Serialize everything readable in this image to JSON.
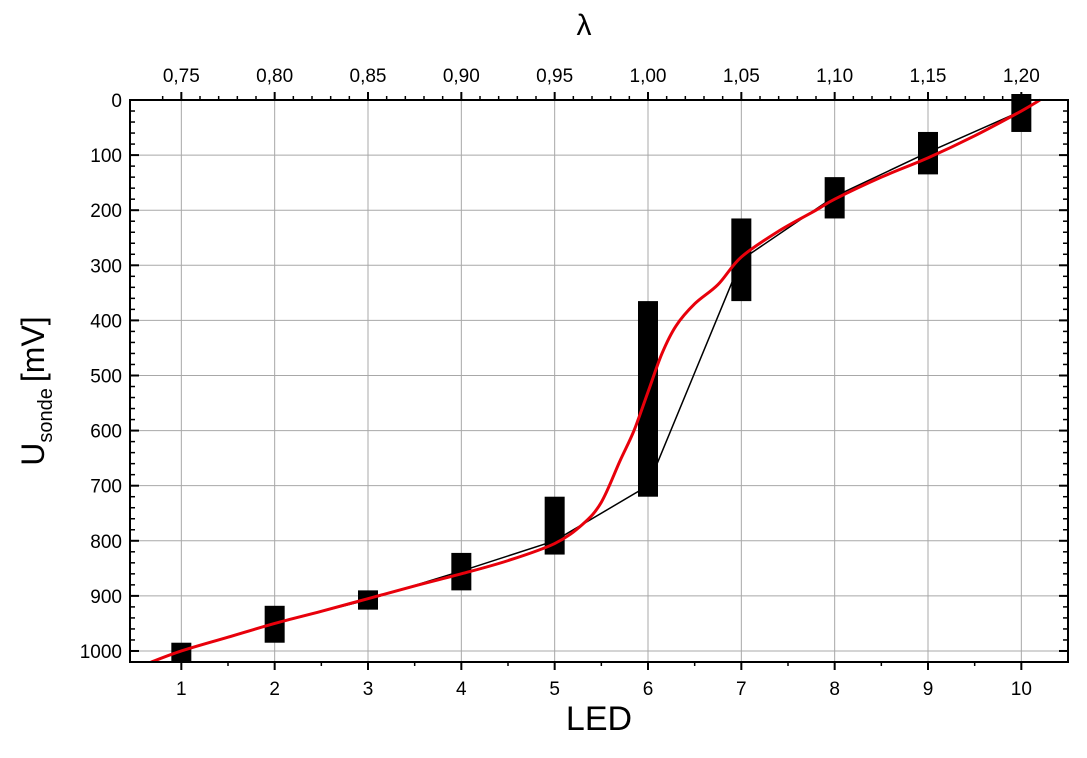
{
  "chart_data": {
    "type": "line",
    "xlabel": "LED",
    "ylabel_main": "U",
    "ylabel_sub": "sonde",
    "ylabel_unit": "[mV]",
    "top_xlabel": "λ",
    "x_categories": [
      "1",
      "2",
      "3",
      "4",
      "5",
      "6",
      "7",
      "8",
      "9",
      "10"
    ],
    "xlim": [
      0.45,
      10.5
    ],
    "ylim": [
      0,
      1020
    ],
    "y_inverted": true,
    "y_ticks": [
      "0",
      "100",
      "200",
      "300",
      "400",
      "500",
      "600",
      "700",
      "800",
      "900",
      "1000"
    ],
    "top_x_ticks": [
      {
        "value": 0.75,
        "label": "0,75"
      },
      {
        "value": 0.8,
        "label": "0,80"
      },
      {
        "value": 0.85,
        "label": "0,85"
      },
      {
        "value": 0.9,
        "label": "0,90"
      },
      {
        "value": 0.95,
        "label": "0,95"
      },
      {
        "value": 1.0,
        "label": "1,00"
      },
      {
        "value": 1.05,
        "label": "1,05"
      },
      {
        "value": 1.1,
        "label": "1,10"
      },
      {
        "value": 1.15,
        "label": "1,15"
      },
      {
        "value": 1.2,
        "label": "1,20"
      }
    ],
    "grid": true,
    "series": [
      {
        "color": "#000000",
        "style": "line-with-error-bars",
        "points": [
          {
            "x": 1,
            "y": 1000,
            "low": 985,
            "high": 1020
          },
          {
            "x": 2,
            "y": 950,
            "low": 918,
            "high": 985
          },
          {
            "x": 3,
            "y": 907,
            "low": 890,
            "high": 925
          },
          {
            "x": 4,
            "y": 855,
            "low": 822,
            "high": 890
          },
          {
            "x": 5,
            "y": 800,
            "low": 720,
            "high": 825
          },
          {
            "x": 6,
            "y": 700,
            "low": 365,
            "high": 720
          },
          {
            "x": 7,
            "y": 290,
            "low": 215,
            "high": 365
          },
          {
            "x": 8,
            "y": 175,
            "low": 140,
            "high": 215
          },
          {
            "x": 9,
            "y": 95,
            "low": 58,
            "high": 135
          },
          {
            "x": 10,
            "y": 20,
            "low": -20,
            "high": 58
          }
        ]
      },
      {
        "color": "#e8000b",
        "style": "smooth-fit",
        "points": [
          {
            "x": 0.65,
            "y": 1022
          },
          {
            "x": 1.0,
            "y": 1000
          },
          {
            "x": 1.5,
            "y": 975
          },
          {
            "x": 2.0,
            "y": 950
          },
          {
            "x": 2.5,
            "y": 928
          },
          {
            "x": 3.0,
            "y": 905
          },
          {
            "x": 3.5,
            "y": 882
          },
          {
            "x": 4.0,
            "y": 860
          },
          {
            "x": 4.5,
            "y": 836
          },
          {
            "x": 5.0,
            "y": 805
          },
          {
            "x": 5.3,
            "y": 770
          },
          {
            "x": 5.5,
            "y": 730
          },
          {
            "x": 5.7,
            "y": 655
          },
          {
            "x": 5.85,
            "y": 600
          },
          {
            "x": 6.0,
            "y": 530
          },
          {
            "x": 6.15,
            "y": 460
          },
          {
            "x": 6.3,
            "y": 410
          },
          {
            "x": 6.5,
            "y": 370
          },
          {
            "x": 6.75,
            "y": 335
          },
          {
            "x": 7.0,
            "y": 285
          },
          {
            "x": 7.4,
            "y": 238
          },
          {
            "x": 7.8,
            "y": 200
          },
          {
            "x": 8.0,
            "y": 180
          },
          {
            "x": 8.5,
            "y": 140
          },
          {
            "x": 9.0,
            "y": 105
          },
          {
            "x": 9.5,
            "y": 65
          },
          {
            "x": 10.0,
            "y": 20
          },
          {
            "x": 10.2,
            "y": 0
          }
        ]
      }
    ]
  }
}
